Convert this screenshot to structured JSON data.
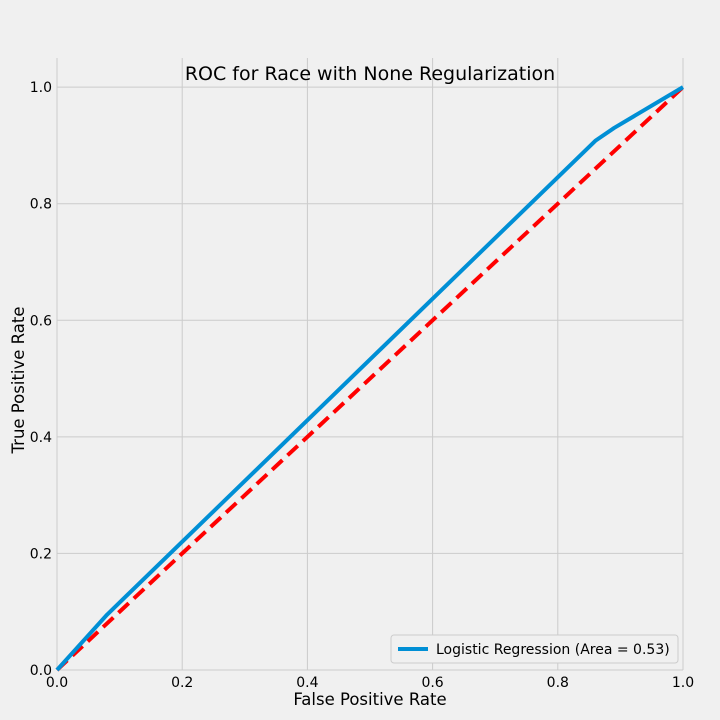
{
  "chart_data": {
    "type": "line",
    "title": "ROC for Race with None Regularization",
    "xlabel": "False Positive Rate",
    "ylabel": "True Positive Rate",
    "xlim": [
      0.0,
      1.0
    ],
    "ylim": [
      0.0,
      1.05
    ],
    "xticks": [
      "0.0",
      "0.2",
      "0.4",
      "0.6",
      "0.8",
      "1.0"
    ],
    "yticks": [
      "0.0",
      "0.2",
      "0.4",
      "0.6",
      "0.8",
      "1.0"
    ],
    "grid": true,
    "legend_position": "lower-right",
    "series": [
      {
        "name": "Logistic Regression (Area = 0.53)",
        "color": "#008fd5",
        "style": "solid",
        "x": [
          0.0,
          0.08,
          0.86,
          0.89,
          1.0
        ],
        "y": [
          0.0,
          0.095,
          0.908,
          0.93,
          1.0
        ]
      },
      {
        "name": "",
        "color": "#ff0000",
        "style": "dashed",
        "x": [
          0.0,
          1.0
        ],
        "y": [
          0.0,
          1.0
        ]
      }
    ]
  }
}
